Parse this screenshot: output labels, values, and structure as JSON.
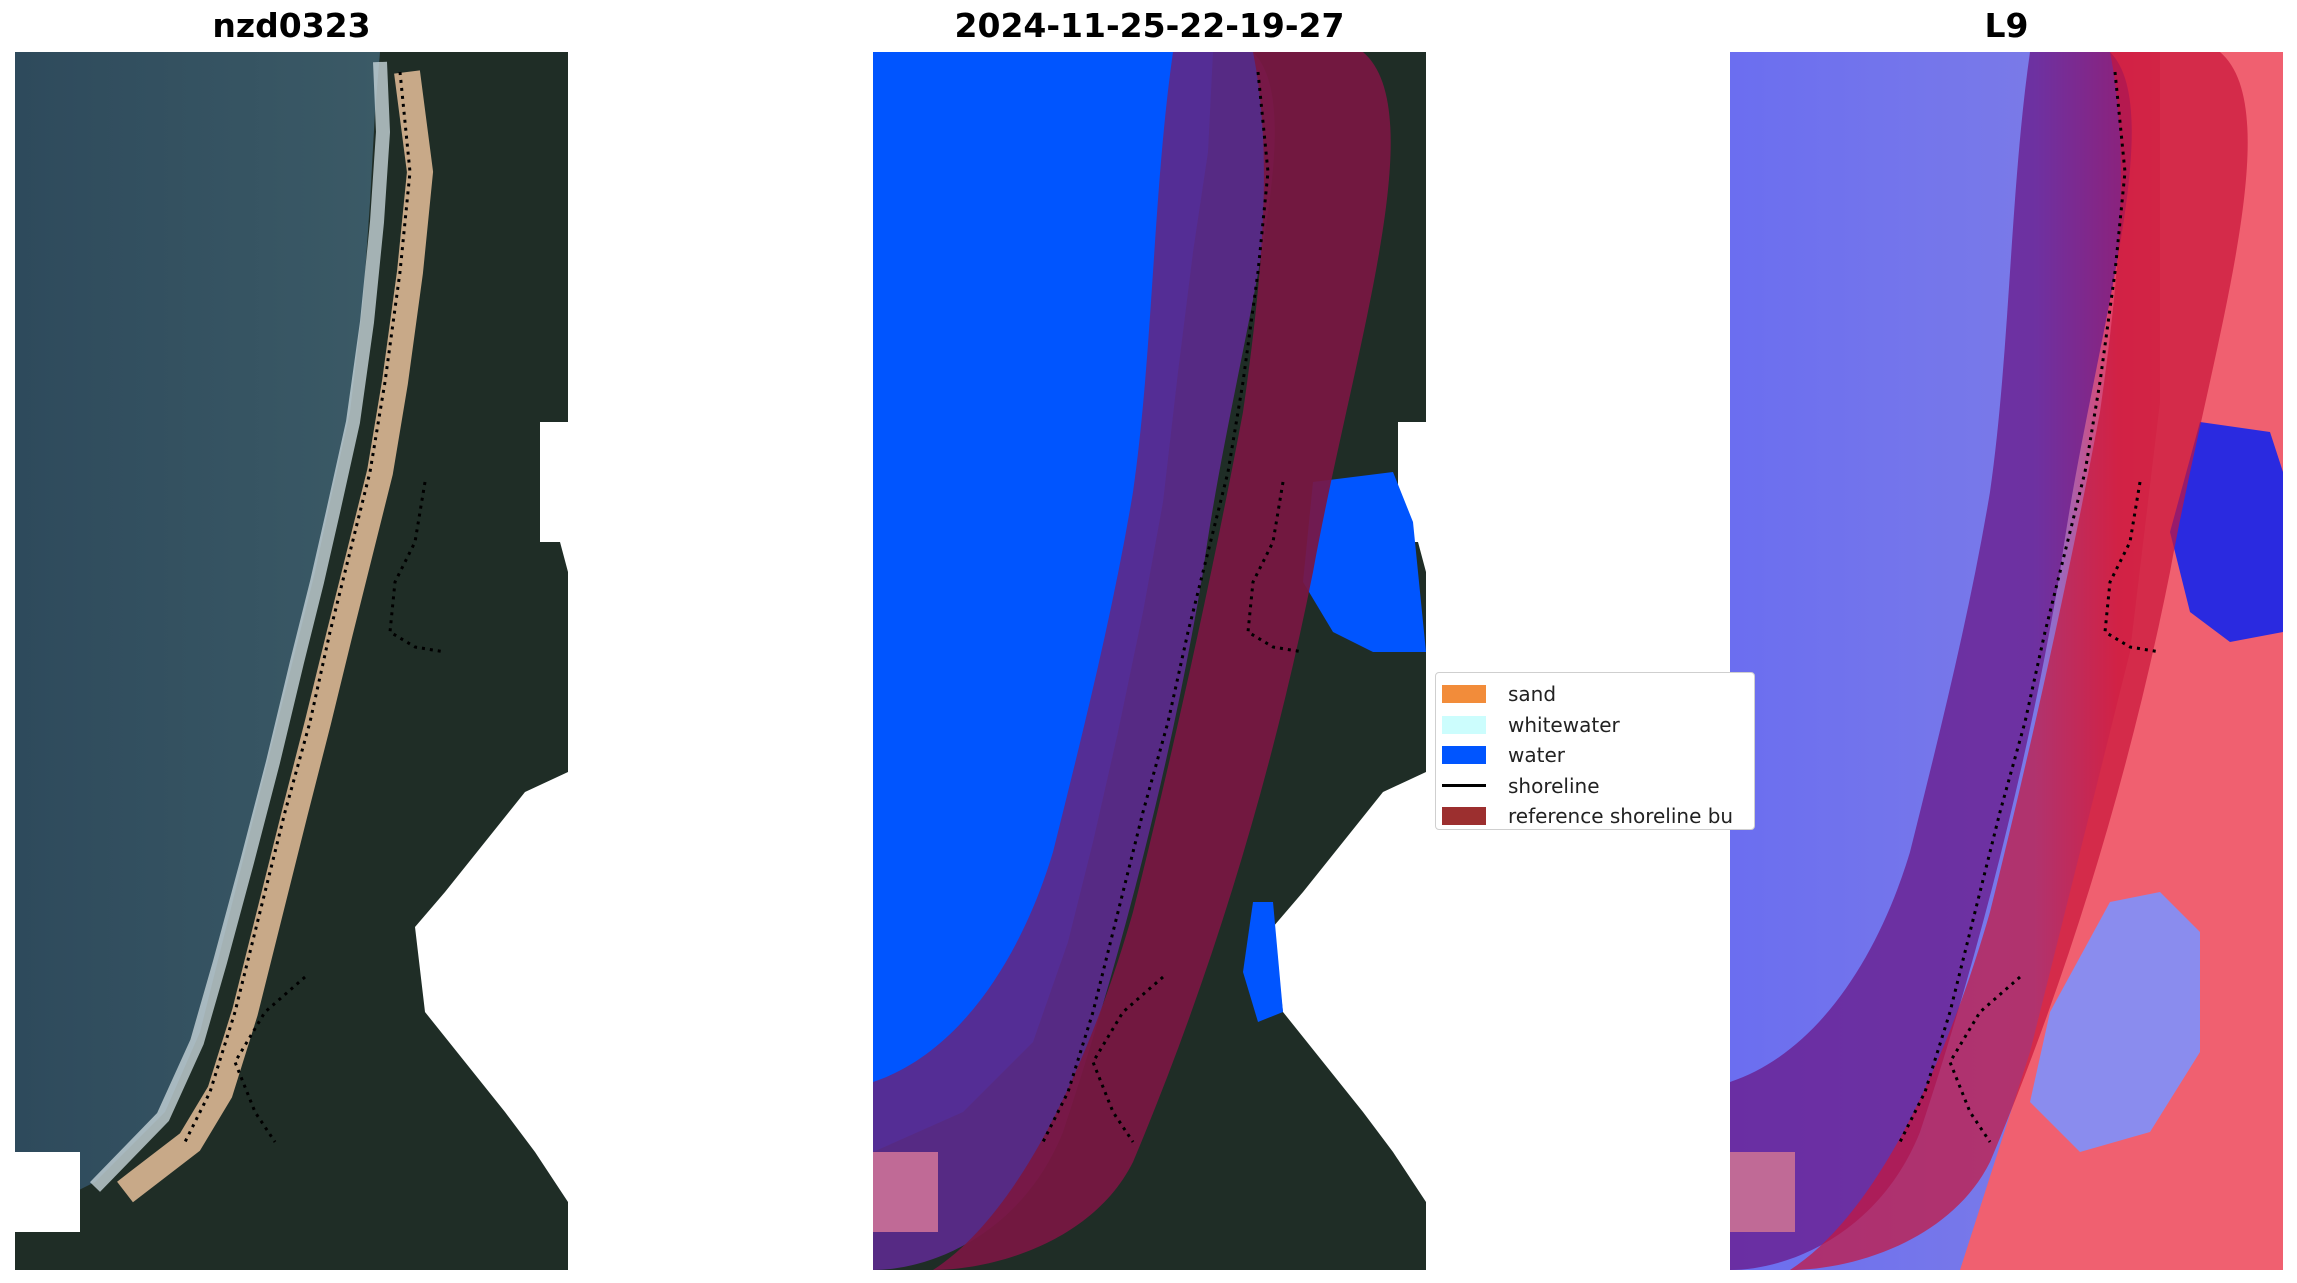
{
  "panels": [
    {
      "title": "nzd0323"
    },
    {
      "title": "2024-11-25-22-19-27"
    },
    {
      "title": "L9"
    }
  ],
  "legend": {
    "items": [
      {
        "label": "sand",
        "color": "#f28c3a",
        "kind": "patch"
      },
      {
        "label": "whitewater",
        "color": "#ccfdfd",
        "kind": "patch"
      },
      {
        "label": "water",
        "color": "#0055ff",
        "kind": "patch"
      },
      {
        "label": "shoreline",
        "color": "#000000",
        "kind": "line"
      },
      {
        "label": "reference shoreline bu",
        "color": "#9c2f2f",
        "kind": "patch"
      }
    ]
  },
  "colors": {
    "sea": "#2f4c5e",
    "vegetation": "#1f2d26",
    "beach": "#c9ab8a",
    "surf": "#c8d4d8",
    "classified_water": "#0055ff",
    "buffer_overlay": "#6a1a8a",
    "index_blue": "#5a5cf0",
    "index_red": "#f03040"
  }
}
